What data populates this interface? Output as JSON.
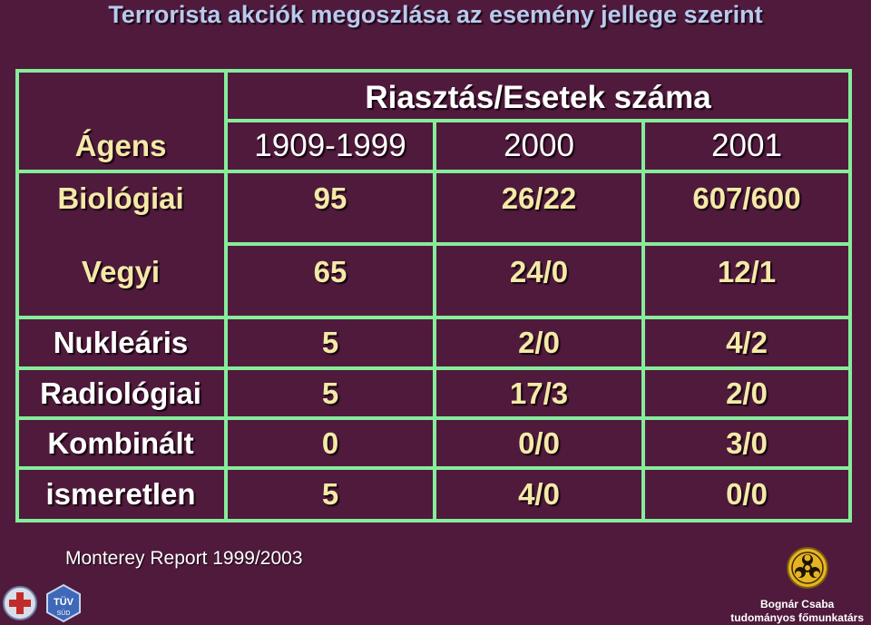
{
  "title": "Terrorista akciók megoszlása az esemény jellege szerint",
  "table": {
    "group_header": "Riasztás/Esetek száma",
    "agent_header": "Ágens",
    "columns": [
      "1909-1999",
      "2000",
      "2001"
    ],
    "rows": [
      {
        "label": "Biológiai",
        "values": [
          "95",
          "26/22",
          "607/600"
        ]
      },
      {
        "label": "Vegyi",
        "values": [
          "65",
          "24/0",
          "12/1"
        ]
      },
      {
        "label": "Nukleáris",
        "values": [
          "5",
          "2/0",
          "4/2"
        ]
      },
      {
        "label": "Radiológiai",
        "values": [
          "5",
          "17/3",
          "2/0"
        ]
      },
      {
        "label": "Kombinált",
        "values": [
          "0",
          "0/0",
          "3/0"
        ]
      },
      {
        "label": "ismeretlen",
        "values": [
          "5",
          "4/0",
          "0/0"
        ]
      }
    ]
  },
  "source": "Monterey Report 1999/2003",
  "footer": {
    "name": "Bognár Csaba",
    "position": "tudományos főmunkatárs",
    "tuv_logo_text": "TÜV",
    "tuv_logo_subtext": "SÜD"
  },
  "colors": {
    "background": "#4f1a3c",
    "grid": "#86ec9a",
    "value_text": "#f4e9a8",
    "title_text": "#b9c9ee"
  }
}
